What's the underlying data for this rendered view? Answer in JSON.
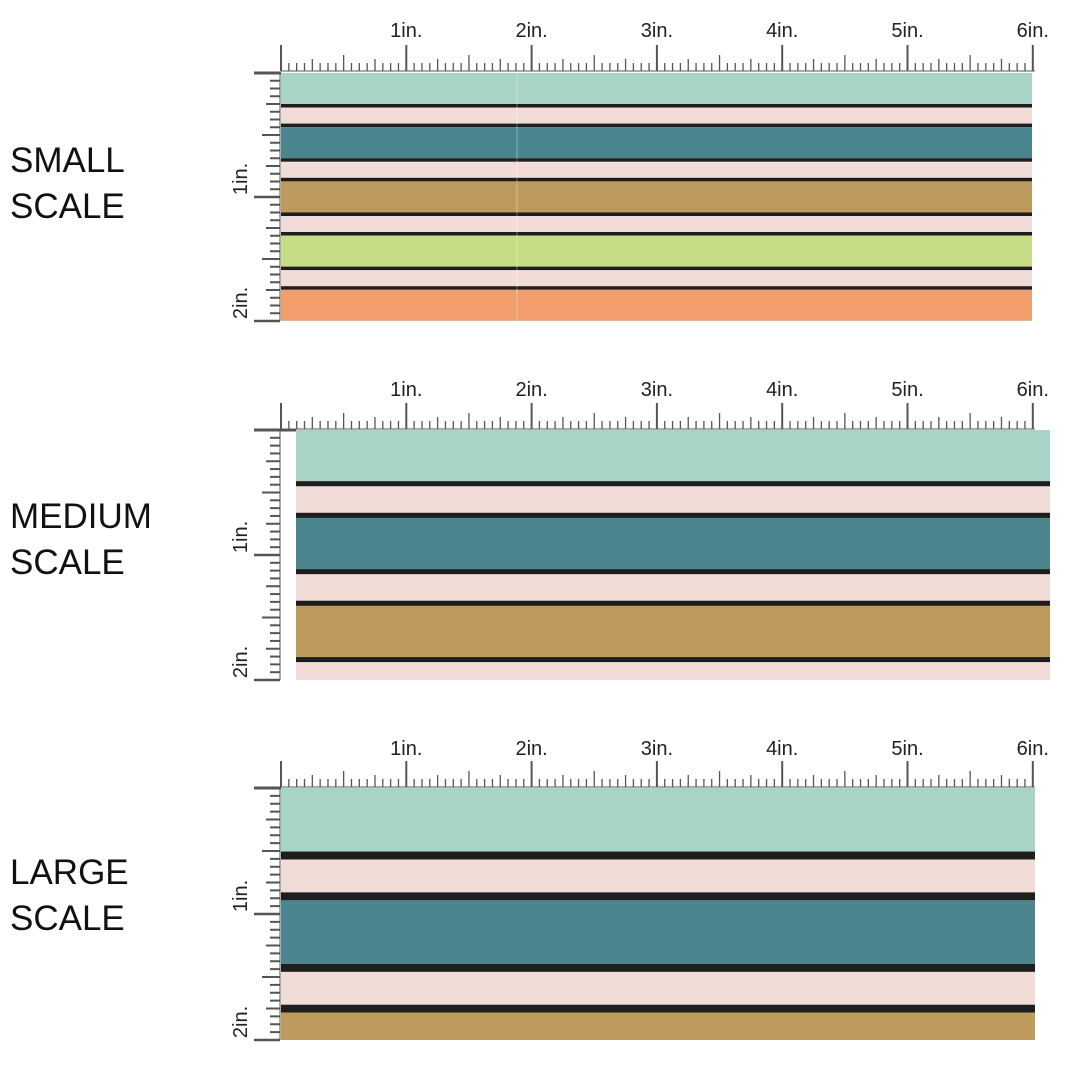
{
  "colors": {
    "mint": "#a8d3c7",
    "blush": "#f2dcd8",
    "teal": "#4b858d",
    "ochre": "#be9a5c",
    "lime": "#c7dd85",
    "apricot": "#f29e6c",
    "stripe_line": "#1e1e1e",
    "ruler": "#555555"
  },
  "ruler_labels": {
    "horizontal": [
      "1in.",
      "2in.",
      "3in.",
      "4in.",
      "5in.",
      "6in."
    ],
    "vertical": [
      "1in.",
      "2in."
    ]
  },
  "scales": [
    {
      "id": "small",
      "label_lines": [
        "SMALL",
        "SCALE"
      ],
      "stripes": [
        "mint",
        "blush",
        "teal",
        "blush",
        "ochre",
        "blush",
        "lime",
        "blush",
        "apricot"
      ],
      "fabric_inches": 6,
      "repeat_inches": 2
    },
    {
      "id": "medium",
      "label_lines": [
        "MEDIUM",
        "SCALE"
      ],
      "stripes": [
        "mint",
        "blush",
        "teal",
        "blush",
        "ochre",
        "blush"
      ],
      "fabric_inches": 6,
      "repeat_inches": 2
    },
    {
      "id": "large",
      "label_lines": [
        "LARGE",
        "SCALE"
      ],
      "stripes": [
        "mint",
        "blush",
        "teal",
        "blush"
      ],
      "fabric_inches": 6,
      "repeat_inches": 2
    }
  ]
}
